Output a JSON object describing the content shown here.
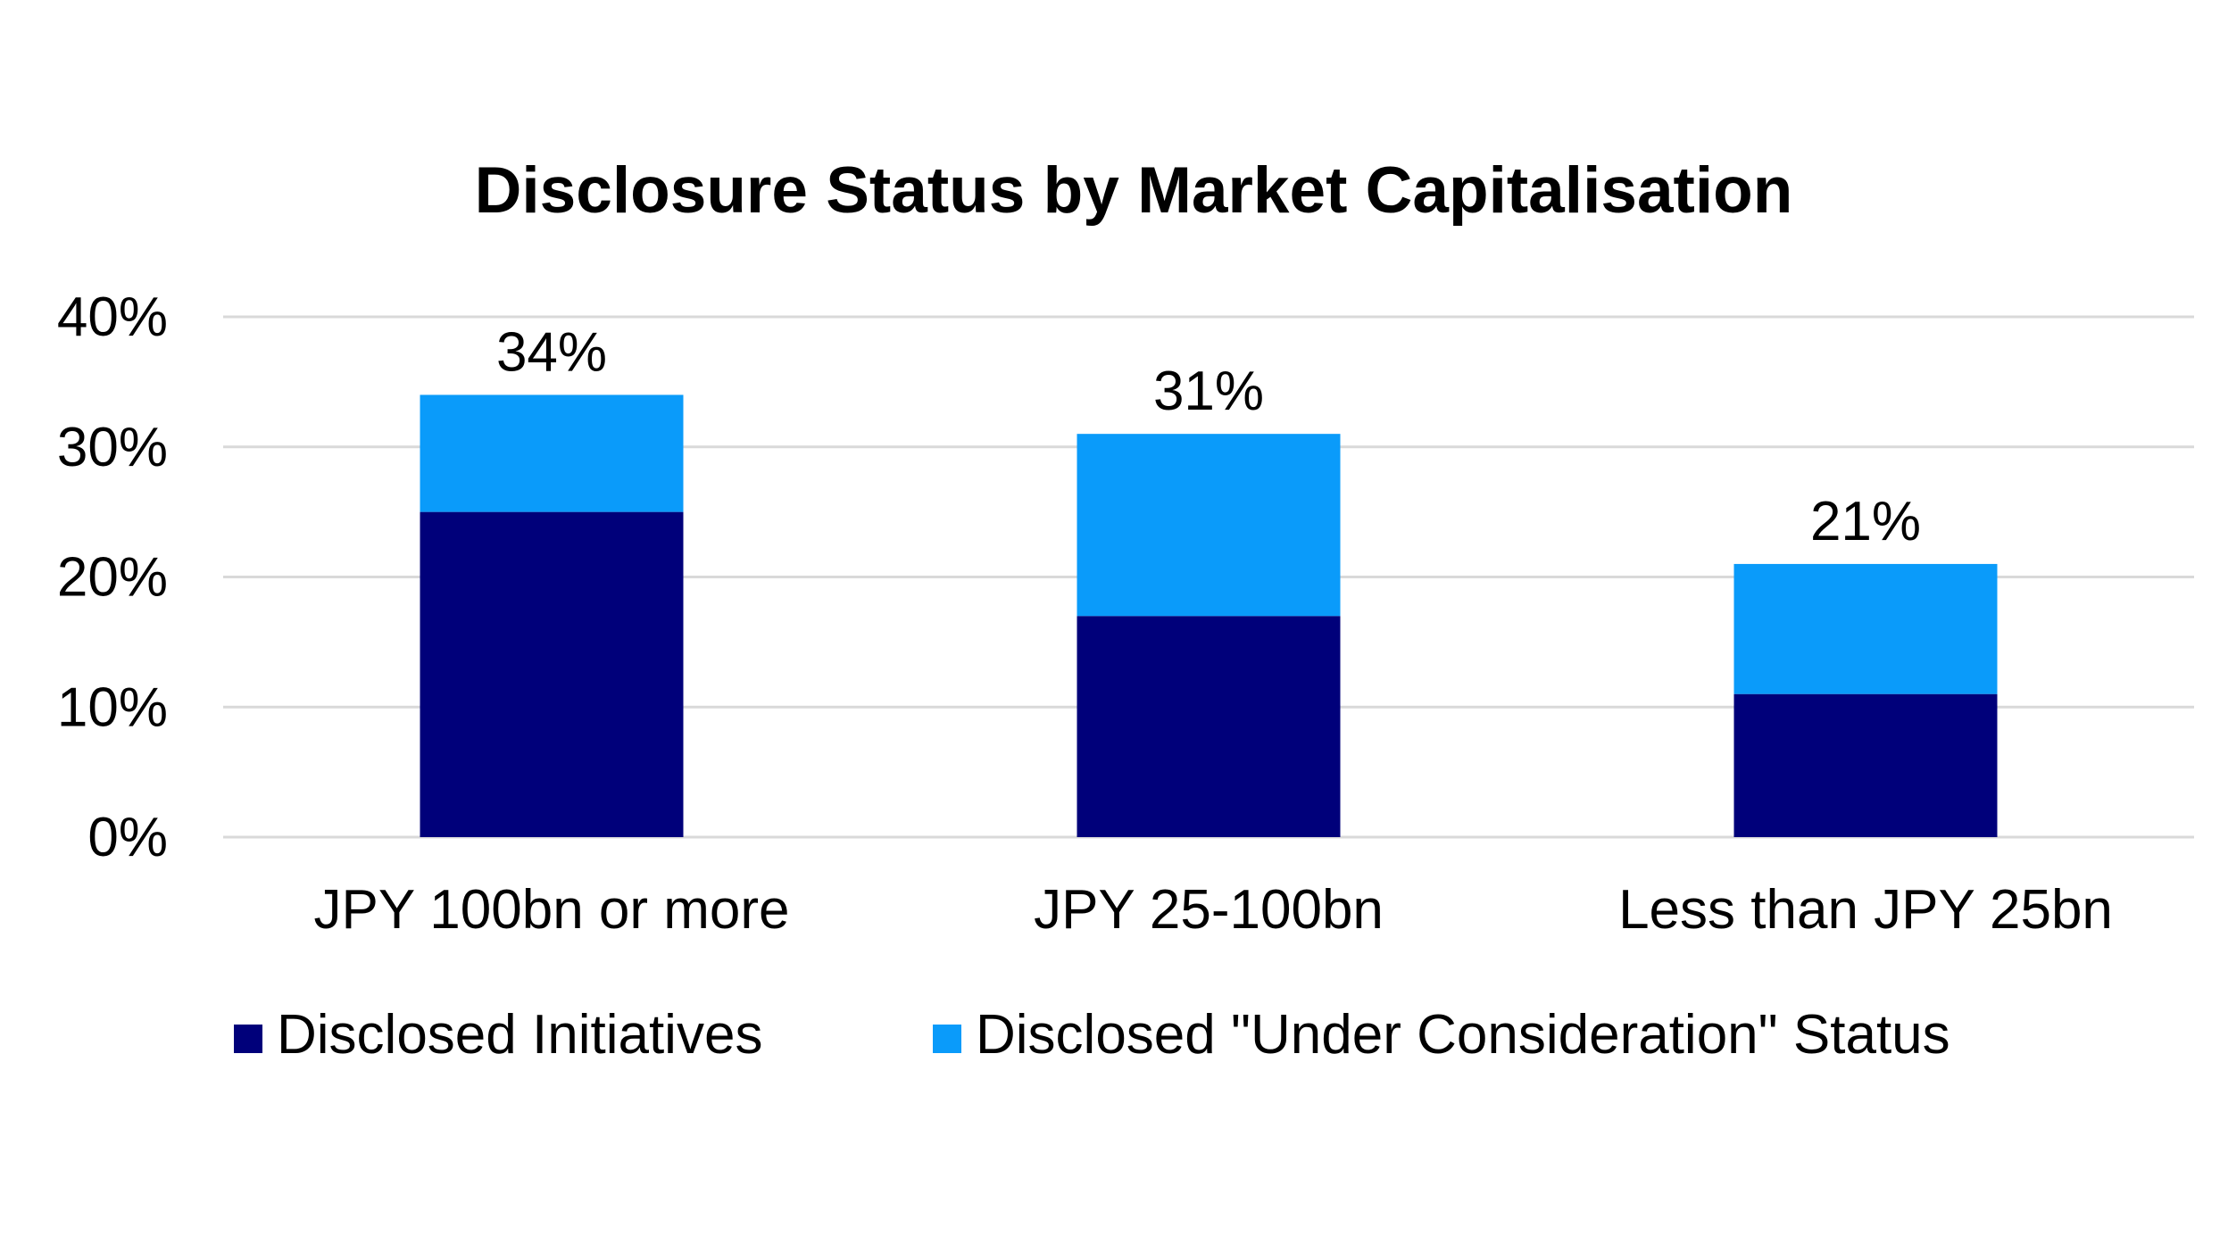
{
  "chart_data": {
    "type": "bar",
    "stacked": true,
    "title": "Disclosure Status by Market Capitalisation",
    "xlabel": "",
    "ylabel": "",
    "ylim": [
      0,
      40
    ],
    "yticks": [
      0,
      10,
      20,
      30,
      40
    ],
    "ytick_labels": [
      "0%",
      "10%",
      "20%",
      "30%",
      "40%"
    ],
    "grid": true,
    "categories": [
      "JPY 100bn or more",
      "JPY 25-100bn",
      "Less than JPY 25bn"
    ],
    "series": [
      {
        "name": "Disclosed Initiatives",
        "color": "#00007a",
        "values": [
          25,
          17,
          11
        ]
      },
      {
        "name": "Disclosed \"Under Consideration\" Status",
        "color": "#0a9bfa",
        "values": [
          9,
          14,
          10
        ]
      }
    ],
    "totals": [
      34,
      31,
      21
    ],
    "total_labels": [
      "34%",
      "31%",
      "21%"
    ],
    "legend_position": "bottom"
  }
}
